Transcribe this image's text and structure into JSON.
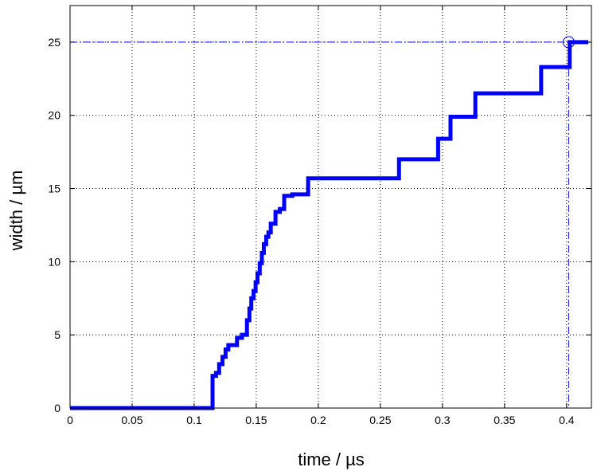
{
  "chart_data": {
    "type": "line",
    "title": "",
    "xlabel": "time / µs",
    "ylabel": "width / µm",
    "xlim": [
      0,
      0.42
    ],
    "ylim": [
      0,
      27.5
    ],
    "xticks": [
      0,
      0.05,
      0.1,
      0.15,
      0.2,
      0.25,
      0.3,
      0.35,
      0.4
    ],
    "xtick_labels": [
      "0",
      "0.05",
      "0.1",
      "0.15",
      "0.2",
      "0.25",
      "0.3",
      "0.35",
      "0.4"
    ],
    "yticks": [
      0,
      5,
      10,
      15,
      20,
      25
    ],
    "ytick_labels": [
      "0",
      "5",
      "10",
      "15",
      "20",
      "25"
    ],
    "grid": true,
    "colors": {
      "series": "#0000ff",
      "reference": "#0000ff",
      "grid": "#000000",
      "axis": "#000000"
    },
    "series": [
      {
        "x": [
          0,
          0.1148,
          0.1148,
          0.1176,
          0.1176,
          0.1201,
          0.1201,
          0.1228,
          0.1228,
          0.1253,
          0.1253,
          0.1275,
          0.1275,
          0.1345,
          0.1345,
          0.1385,
          0.1385,
          0.1425,
          0.1425,
          0.1445,
          0.1445,
          0.146,
          0.146,
          0.1478,
          0.1478,
          0.1495,
          0.1495,
          0.151,
          0.151,
          0.1528,
          0.1528,
          0.1545,
          0.1545,
          0.1561,
          0.1561,
          0.158,
          0.158,
          0.1598,
          0.1598,
          0.1617,
          0.1617,
          0.1655,
          0.1655,
          0.169,
          0.169,
          0.1725,
          0.1725,
          0.176,
          0.176,
          0.179,
          0.179,
          0.1918,
          0.1918,
          0.265,
          0.265,
          0.2965,
          0.2965,
          0.3065,
          0.3065,
          0.3265,
          0.3265,
          0.3795,
          0.3795,
          0.4025,
          0.4025,
          0.4175
        ],
        "y": [
          0,
          0,
          2.2,
          2.2,
          2.4,
          2.4,
          3.0,
          3.0,
          3.5,
          3.5,
          4.0,
          4.0,
          4.3,
          4.3,
          4.8,
          4.8,
          5.0,
          5.0,
          6.0,
          6.0,
          6.8,
          6.8,
          7.5,
          7.5,
          8.0,
          8.0,
          8.6,
          8.6,
          9.2,
          9.2,
          9.9,
          9.9,
          10.6,
          10.6,
          11.2,
          11.2,
          11.7,
          11.7,
          12.0,
          12.0,
          12.6,
          12.6,
          13.4,
          13.4,
          13.6,
          13.6,
          14.5,
          14.5,
          14.5,
          14.5,
          14.6,
          14.6,
          15.7,
          15.7,
          17.0,
          17.0,
          18.4,
          18.4,
          19.9,
          19.9,
          21.5,
          21.5,
          23.3,
          23.3,
          25.0,
          25.0
        ]
      }
    ],
    "reference_lines": {
      "horizontal_y": 25,
      "vertical_x": 0.4017,
      "style": "dash-dot"
    },
    "marker": {
      "x": 0.4017,
      "y": 25,
      "shape": "open-circle"
    }
  }
}
